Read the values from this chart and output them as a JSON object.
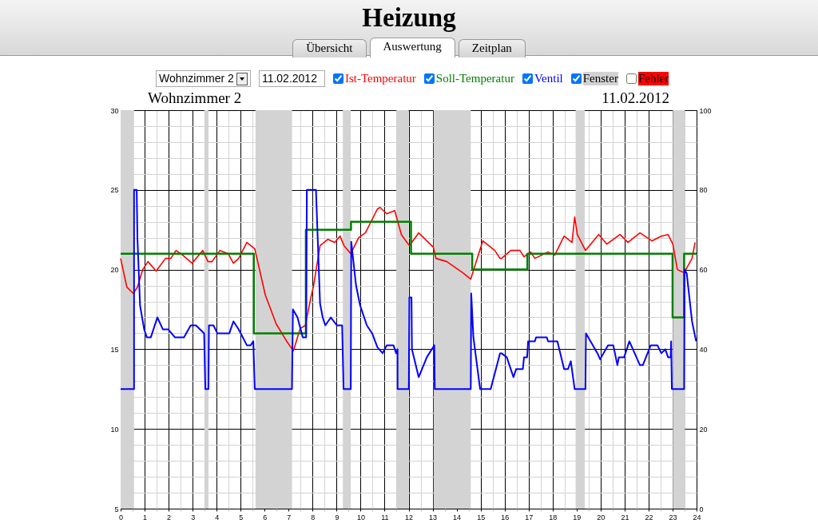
{
  "chart_data": {
    "type": "line",
    "title": "Heizung",
    "subtitle": "Wohnzimmer 2",
    "annotations": [
      "Übersicht",
      "Auswertung",
      "Zeitplan",
      "Wohnzimmer 2",
      "11.02.2012",
      "Fehler",
      "11.02.2012",
      "Fenster"
    ],
    "legend": "top",
    "grid": true,
    "xlim": [
      0,
      24
    ],
    "xticks": [
      0,
      {
        "value": 0.5,
        "label": null
      },
      1,
      {
        "value": 1.5,
        "label": null
      },
      2,
      {
        "value": 2.5,
        "label": null
      },
      3,
      {
        "value": 3.5,
        "label": null
      },
      4,
      {
        "value": 4.5,
        "label": null
      },
      5,
      {
        "value": 5.5,
        "label": null
      },
      6,
      {
        "value": 6.5,
        "label": null
      },
      7,
      {
        "value": 7.5,
        "label": null
      },
      8,
      {
        "value": 8.5,
        "label": null
      },
      9,
      {
        "value": 9.5,
        "label": null
      },
      10,
      {
        "value": 10.5,
        "label": null
      },
      11,
      {
        "value": 11.5,
        "label": null
      },
      12,
      {
        "value": 12.5,
        "label": null
      },
      13,
      {
        "value": 13.5,
        "label": null
      },
      14,
      {
        "value": 14.5,
        "label": null
      },
      15,
      {
        "value": 15.5,
        "label": null
      },
      16,
      {
        "value": 16.5,
        "label": null
      },
      17,
      {
        "value": 17.5,
        "label": null
      },
      18,
      {
        "value": 18.5,
        "label": null
      },
      19,
      {
        "value": 19.5,
        "label": null
      },
      20,
      {
        "value": 20.5,
        "label": null
      },
      21,
      {
        "value": 21.5,
        "label": null
      },
      22,
      {
        "value": 22.5,
        "label": null
      },
      23,
      {
        "value": 23.5,
        "label": null
      },
      24
    ],
    "ylim": [
      5,
      30
    ],
    "yticks": [
      5,
      {
        "value": 6,
        "label": null
      },
      {
        "value": 7,
        "label": null
      },
      {
        "value": 8,
        "label": null
      },
      {
        "value": 9,
        "label": null
      },
      10,
      {
        "value": 11,
        "label": null
      },
      {
        "value": 12,
        "label": null
      },
      {
        "value": 13,
        "label": null
      },
      {
        "value": 14,
        "label": null
      },
      15,
      {
        "value": 16,
        "label": null
      },
      {
        "value": 17,
        "label": null
      },
      {
        "value": 18,
        "label": null
      },
      {
        "value": 19,
        "label": null
      },
      20,
      {
        "value": 21,
        "label": null
      },
      {
        "value": 22,
        "label": null
      },
      {
        "value": 23,
        "label": null
      },
      {
        "value": 24,
        "label": null
      },
      25,
      {
        "value": 26,
        "label": null
      },
      {
        "value": 27,
        "label": null
      },
      {
        "value": 28,
        "label": null
      },
      {
        "value": 29,
        "label": null
      },
      30
    ],
    "y2lim": [
      0,
      100
    ],
    "y2ticks": [
      0,
      20,
      40,
      60,
      80,
      100
    ],
    "bands": [
      {
        "axis": "x",
        "from": 0,
        "to": 0.56,
        "color": "#d3d3d3"
      },
      {
        "axis": "x",
        "from": 3.49,
        "to": 3.66,
        "color": "#d3d3d3"
      },
      {
        "axis": "x",
        "from": 5.62,
        "to": 7.14,
        "color": "#d3d3d3"
      },
      {
        "axis": "x",
        "from": 9.26,
        "to": 9.59,
        "color": "#d3d3d3"
      },
      {
        "axis": "x",
        "from": 11.49,
        "to": 12.0,
        "color": "#d3d3d3"
      },
      {
        "axis": "x",
        "from": 13.04,
        "to": 14.59,
        "color": "#d3d3d3"
      },
      {
        "axis": "x",
        "from": 18.96,
        "to": 19.34,
        "color": "#d3d3d3"
      },
      {
        "axis": "x",
        "from": 23.01,
        "to": 23.51,
        "color": "#d3d3d3"
      }
    ],
    "series": [
      {
        "name": "Ist-Temperatur",
        "color": "#ff0000",
        "type": "line",
        "x": [
          0,
          0.26,
          0.53,
          0.7,
          0.92,
          1.14,
          1.48,
          1.87,
          2.09,
          2.31,
          2.59,
          2.98,
          3.42,
          3.64,
          3.81,
          4.14,
          4.48,
          4.7,
          4.92,
          5.26,
          5.59,
          6.03,
          6.48,
          6.92,
          7.2,
          7.48,
          7.7,
          7.92,
          8.03,
          8.31,
          8.64,
          8.92,
          9.14,
          9.31,
          9.59,
          9.92,
          10.2,
          10.7,
          10.81,
          11.09,
          11.42,
          11.7,
          12.03,
          12.42,
          13.03,
          13.14,
          13.59,
          14.26,
          14.59,
          15.09,
          15.59,
          15.81,
          15.87,
          16.26,
          16.64,
          16.81,
          17.09,
          17.26,
          17.81,
          18.09,
          18.48,
          18.81,
          18.92,
          19.03,
          19.37,
          19.92,
          20.26,
          20.81,
          21.14,
          21.64,
          22.14,
          22.53,
          22.81,
          23.01,
          23.2,
          23.48,
          23.81,
          23.94
        ],
        "values": [
          20.7,
          18.9,
          18.5,
          18.9,
          20.0,
          20.5,
          19.9,
          20.7,
          20.7,
          21.2,
          20.9,
          20.4,
          21.2,
          20.5,
          20.5,
          21.2,
          21.0,
          20.4,
          20.7,
          21.7,
          21.3,
          18.4,
          16.6,
          15.5,
          14.9,
          16.3,
          16.5,
          18.2,
          18.9,
          21.5,
          21.9,
          21.7,
          22.1,
          21.5,
          21.0,
          22.0,
          22.3,
          23.8,
          23.9,
          23.5,
          23.7,
          22.2,
          21.5,
          22.3,
          21.4,
          20.7,
          20.5,
          19.8,
          19.4,
          21.8,
          21.2,
          20.7,
          20.7,
          21.2,
          21.2,
          20.8,
          21.1,
          20.7,
          21.1,
          20.9,
          22.1,
          21.7,
          23.3,
          22.2,
          21.2,
          22.2,
          21.6,
          22.2,
          21.7,
          22.3,
          21.8,
          22.1,
          22.2,
          21.6,
          20.0,
          19.8,
          20.7,
          21.7
        ]
      },
      {
        "name": "Soll-Temperatur",
        "color": "#008000",
        "type": "step",
        "x": [
          0,
          5.55,
          7.72,
          9.6,
          12.1,
          14.65,
          16.95,
          23.0,
          23.48,
          24
        ],
        "values": [
          21,
          16,
          22.5,
          23,
          21,
          20,
          21,
          17,
          21,
          21
        ]
      },
      {
        "name": "Ventil",
        "color": "#0000ff",
        "type": "line",
        "axis": "y2",
        "x": [
          0,
          0.56,
          0.56,
          0.67,
          0.7,
          0.81,
          0.98,
          1.09,
          1.26,
          1.53,
          1.76,
          1.98,
          2.26,
          2.64,
          2.92,
          3.14,
          3.48,
          3.53,
          3.66,
          3.68,
          3.87,
          4.03,
          4.53,
          4.7,
          4.92,
          5.26,
          5.42,
          5.53,
          5.59,
          7.14,
          7.18,
          7.37,
          7.59,
          7.73,
          7.76,
          8.14,
          8.2,
          8.31,
          8.42,
          8.53,
          8.76,
          9.01,
          9.23,
          9.29,
          9.59,
          9.61,
          9.81,
          9.98,
          10.26,
          10.48,
          10.7,
          10.92,
          11.09,
          11.37,
          11.48,
          11.54,
          11.54,
          12.01,
          12.03,
          12.12,
          12.14,
          12.42,
          12.76,
          13.07,
          13.09,
          14.59,
          14.61,
          14.7,
          14.98,
          15.42,
          15.81,
          15.87,
          16.09,
          16.37,
          16.48,
          16.76,
          16.81,
          16.94,
          16.98,
          17.26,
          17.31,
          17.76,
          17.81,
          18.2,
          18.48,
          18.64,
          18.76,
          18.92,
          19.37,
          19.39,
          19.87,
          19.98,
          20.31,
          20.53,
          20.7,
          20.76,
          20.98,
          21.2,
          21.64,
          21.76,
          22.09,
          22.37,
          22.53,
          22.7,
          22.81,
          22.92,
          22.94,
          22.97,
          23.48,
          23.5,
          23.59,
          23.81,
          23.98
        ],
        "values": [
          30,
          30,
          80,
          80,
          68,
          51,
          45,
          43,
          43,
          48,
          45,
          45,
          43,
          43,
          46,
          46,
          44,
          30,
          30,
          46,
          46,
          44,
          44,
          47,
          45,
          41,
          41,
          42,
          30,
          30,
          50,
          48,
          43,
          43,
          80,
          80,
          70,
          51.5,
          48,
          46,
          48,
          46,
          46,
          30,
          30,
          67,
          56,
          51,
          46,
          44,
          40.5,
          39,
          41,
          41,
          39,
          40,
          30,
          30,
          53,
          53,
          40,
          33,
          38,
          41,
          30,
          30,
          54,
          43,
          30,
          30,
          39,
          39,
          38,
          33,
          35,
          35,
          38,
          38,
          42,
          42,
          43,
          43,
          42,
          42,
          35,
          35,
          37,
          30,
          30,
          44,
          39,
          37.5,
          41,
          41,
          36,
          38,
          38,
          42,
          36,
          36,
          41,
          41,
          39,
          40,
          38,
          38,
          42,
          30,
          30,
          60,
          59,
          47,
          42
        ]
      }
    ]
  }
}
